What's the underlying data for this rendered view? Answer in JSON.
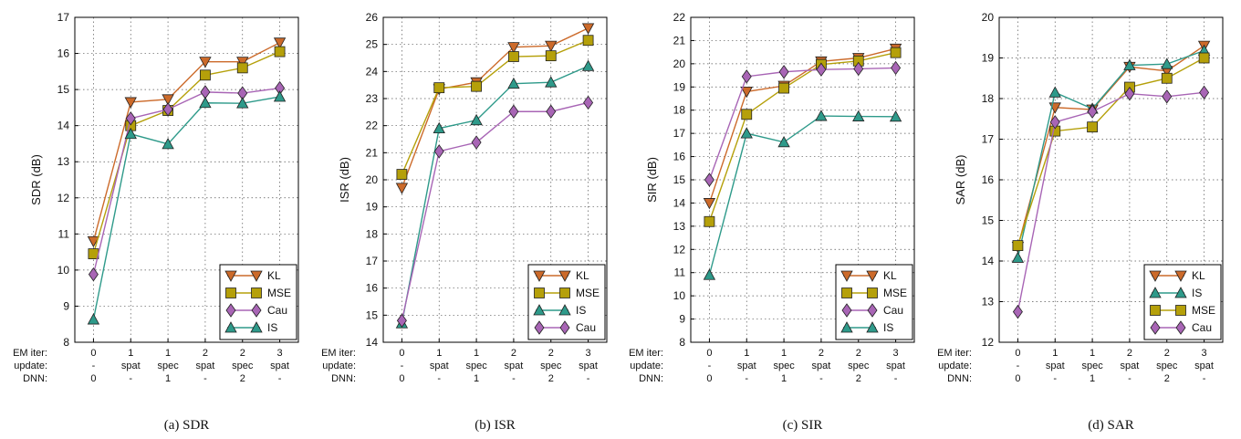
{
  "x_row_labels": [
    "EM iter:",
    "update:",
    "DNN:"
  ],
  "x_ticks": {
    "em_iter": [
      "0",
      "1",
      "1",
      "2",
      "2",
      "3"
    ],
    "update": [
      "-",
      "spat",
      "spec",
      "spat",
      "spec",
      "spat"
    ],
    "dnn": [
      "0",
      "-",
      "1",
      "-",
      "2",
      "-"
    ]
  },
  "colors": {
    "KL": "#cc6a2a",
    "MSE": "#b5a00a",
    "Cau": "#a865b5",
    "IS": "#2e9a8a"
  },
  "markers": {
    "KL": "triangle-down",
    "MSE": "square",
    "Cau": "diamond",
    "IS": "triangle-up"
  },
  "chart_data": [
    {
      "type": "line",
      "caption": "(a) SDR",
      "ylabel": "SDR (dB)",
      "ylim": [
        8,
        17
      ],
      "yticks": [
        8,
        9,
        10,
        11,
        12,
        13,
        14,
        15,
        16,
        17
      ],
      "grid": true,
      "legend_position": "bottom-right",
      "series": [
        {
          "name": "KL",
          "values": [
            10.8,
            14.65,
            14.73,
            15.77,
            15.77,
            16.3
          ]
        },
        {
          "name": "MSE",
          "values": [
            10.45,
            14.0,
            14.42,
            15.4,
            15.6,
            16.05
          ]
        },
        {
          "name": "Cau",
          "values": [
            9.88,
            14.2,
            14.45,
            14.93,
            14.9,
            15.04
          ]
        },
        {
          "name": "IS",
          "values": [
            8.63,
            13.77,
            13.49,
            14.63,
            14.62,
            14.8
          ]
        }
      ]
    },
    {
      "type": "line",
      "caption": "(b) ISR",
      "ylabel": "ISR (dB)",
      "ylim": [
        14,
        26
      ],
      "yticks": [
        14,
        15,
        16,
        17,
        18,
        19,
        20,
        21,
        22,
        23,
        24,
        25,
        26
      ],
      "grid": true,
      "legend_position": "bottom-right",
      "series": [
        {
          "name": "KL",
          "values": [
            19.7,
            23.35,
            23.6,
            24.9,
            24.95,
            25.6
          ]
        },
        {
          "name": "MSE",
          "values": [
            20.2,
            23.4,
            23.45,
            24.55,
            24.58,
            25.15
          ]
        },
        {
          "name": "IS",
          "values": [
            14.7,
            21.9,
            22.2,
            23.55,
            23.6,
            24.2
          ]
        },
        {
          "name": "Cau",
          "values": [
            14.8,
            21.05,
            21.38,
            22.52,
            22.52,
            22.85
          ]
        }
      ]
    },
    {
      "type": "line",
      "caption": "(c) SIR",
      "ylabel": "SIR (dB)",
      "ylim": [
        8,
        22
      ],
      "yticks": [
        8,
        9,
        10,
        11,
        12,
        13,
        14,
        15,
        16,
        17,
        18,
        19,
        20,
        21,
        22
      ],
      "grid": true,
      "legend_position": "bottom-right",
      "series": [
        {
          "name": "KL",
          "values": [
            14.0,
            18.8,
            19.05,
            20.1,
            20.25,
            20.65
          ]
        },
        {
          "name": "MSE",
          "values": [
            13.2,
            17.82,
            18.95,
            19.97,
            20.12,
            20.48
          ]
        },
        {
          "name": "Cau",
          "values": [
            15.0,
            19.45,
            19.65,
            19.75,
            19.78,
            19.82
          ]
        },
        {
          "name": "IS",
          "values": [
            10.9,
            17.0,
            16.62,
            17.75,
            17.73,
            17.72
          ]
        }
      ]
    },
    {
      "type": "line",
      "caption": "(d) SAR",
      "ylabel": "SAR (dB)",
      "ylim": [
        12,
        20
      ],
      "yticks": [
        12,
        13,
        14,
        15,
        16,
        17,
        18,
        19,
        20
      ],
      "grid": true,
      "legend_position": "bottom-right",
      "series": [
        {
          "name": "KL",
          "values": [
            14.35,
            17.78,
            17.73,
            18.78,
            18.68,
            19.3
          ]
        },
        {
          "name": "IS",
          "values": [
            14.08,
            18.15,
            17.75,
            18.82,
            18.85,
            19.18
          ]
        },
        {
          "name": "MSE",
          "values": [
            14.38,
            17.2,
            17.3,
            18.28,
            18.5,
            19.0
          ]
        },
        {
          "name": "Cau",
          "values": [
            12.75,
            17.42,
            17.68,
            18.12,
            18.05,
            18.15
          ]
        }
      ]
    }
  ]
}
